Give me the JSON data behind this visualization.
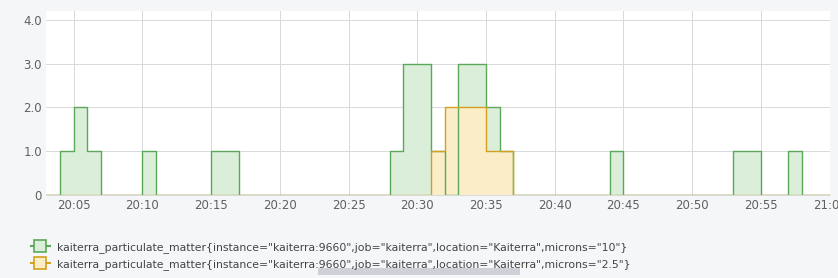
{
  "background_color": "#f5f6f7",
  "plot_bg_color": "#ffffff",
  "grid_color": "#d8d9da",
  "green_color": "#5ba85a",
  "green_fill": "#daeeda",
  "orange_color": "#d4a020",
  "orange_fill": "#faedc8",
  "legend_label_green": "kaiterra_particulate_matter{instance=\"kaiterra:9660\",job=\"kaiterra\",location=\"Kaiterra\",microns=\"10\"}",
  "legend_label_orange": "kaiterra_particulate_matter{instance=\"kaiterra:9660\",job=\"kaiterra\",location=\"Kaiterra\",microns=\"2.5\"}",
  "ylim": [
    0,
    4.2
  ],
  "yticks": [
    0,
    1.0,
    2.0,
    3.0,
    4.0
  ],
  "ytick_labels": [
    "0",
    "1.0",
    "2.0",
    "3.0",
    "4.0"
  ],
  "xlim": [
    0,
    57
  ],
  "xtick_positions": [
    2,
    7,
    12,
    17,
    22,
    27,
    32,
    37,
    42,
    47,
    52,
    57
  ],
  "xtick_labels": [
    "20:05",
    "20:10",
    "20:15",
    "20:20",
    "20:25",
    "20:30",
    "20:35",
    "20:40",
    "20:45",
    "20:50",
    "20:55",
    "21:00"
  ],
  "green_times": [
    0,
    1,
    2,
    3,
    4,
    6,
    7,
    8,
    11,
    12,
    13,
    14,
    24,
    25,
    26,
    27,
    28,
    29,
    30,
    31,
    32,
    33,
    34,
    41,
    42,
    50,
    51,
    54,
    55
  ],
  "green_vals": [
    0,
    1,
    2,
    1,
    0,
    0,
    1,
    0,
    0,
    1,
    1,
    0,
    0,
    1,
    3,
    3,
    1,
    0,
    3,
    3,
    2,
    1,
    0,
    1,
    0,
    1,
    1,
    1,
    0
  ],
  "orange_times": [
    0,
    27,
    28,
    29,
    30,
    31,
    32,
    33,
    34
  ],
  "orange_vals": [
    0,
    0,
    1,
    2,
    2,
    2,
    1,
    1,
    0
  ]
}
